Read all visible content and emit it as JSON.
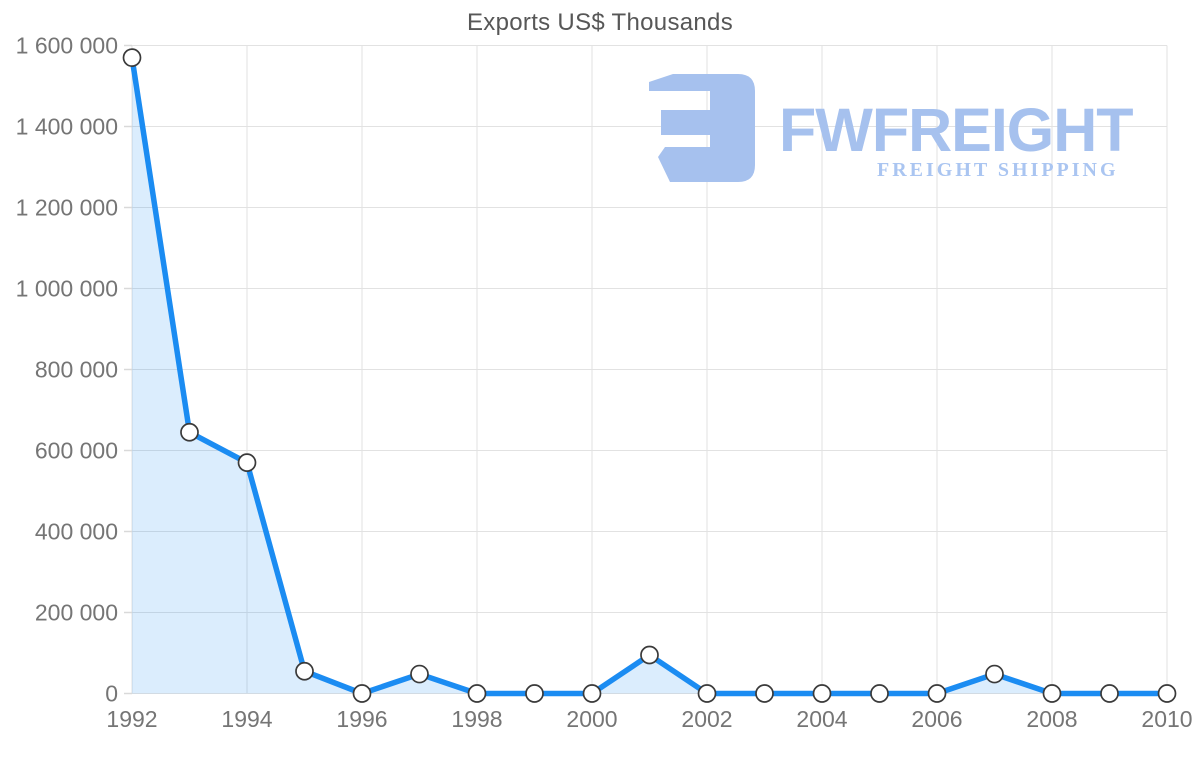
{
  "watermark": {
    "wordmark": "FWFREIGHT",
    "subtitle": "FREIGHT SHIPPING",
    "color": "#a6c1ee",
    "subtitle_color": "#aac5f1"
  },
  "chart_data": {
    "type": "area",
    "title": "Exports US$ Thousands",
    "xlabel": "",
    "ylabel": "",
    "x": [
      1992,
      1993,
      1994,
      1995,
      1996,
      1997,
      1998,
      1999,
      2000,
      2001,
      2002,
      2003,
      2004,
      2005,
      2006,
      2007,
      2008,
      2009,
      2010
    ],
    "values": [
      1570000,
      645000,
      570000,
      55000,
      0,
      48000,
      0,
      0,
      0,
      95000,
      0,
      0,
      0,
      0,
      0,
      48000,
      0,
      0,
      0
    ],
    "ylim": [
      0,
      1600000
    ],
    "grid": true,
    "legend": false,
    "y_ticks": {
      "values": [
        0,
        200000,
        400000,
        600000,
        800000,
        1000000,
        1200000,
        1400000,
        1600000
      ],
      "labels": [
        "0",
        "200 000",
        "400 000",
        "600 000",
        "800 000",
        "1 000 000",
        "1 200 000",
        "1 400 000",
        "1 600 000"
      ]
    },
    "x_ticks": {
      "values": [
        1992,
        1994,
        1996,
        1998,
        2000,
        2002,
        2004,
        2006,
        2008,
        2010
      ],
      "labels": [
        "1992",
        "1994",
        "1996",
        "1998",
        "2000",
        "2002",
        "2004",
        "2006",
        "2008",
        "2010"
      ]
    },
    "colors": {
      "line": "#1b8cf2",
      "fill": "rgba(30,140,242,0.16)",
      "grid": "#e2e2e2",
      "tick": "#d9d9d9",
      "axis_text": "#757575",
      "title_text": "#575757",
      "marker_fill": "#ffffff",
      "marker_stroke": "#3a3a3a"
    }
  }
}
